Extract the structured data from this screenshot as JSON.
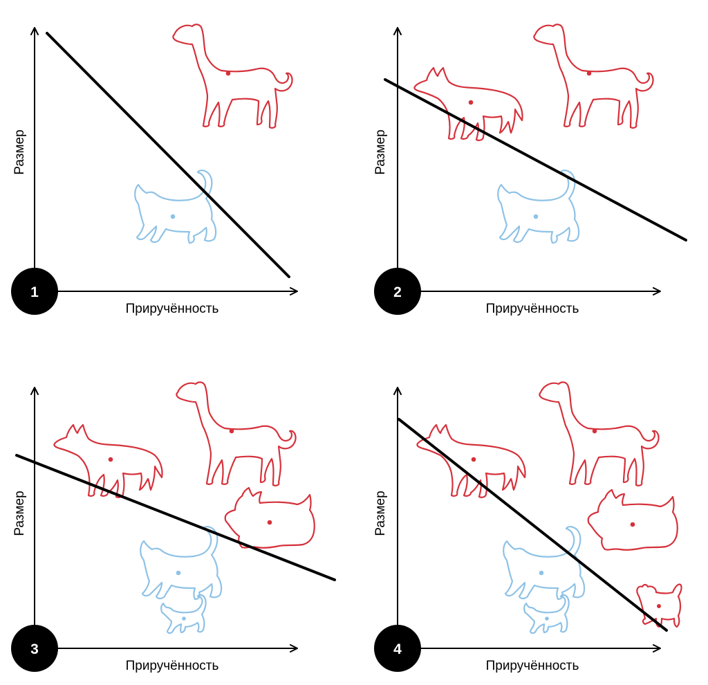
{
  "colors": {
    "dog": "#d5313b",
    "cat": "#8ec2e6",
    "axis": "#000000",
    "boundary": "#000000",
    "badge": "#000000",
    "badge_text": "#ffffff"
  },
  "panels": [
    {
      "number": "1",
      "x_axis_label": "Приручённость",
      "y_axis_label": "Размер",
      "animals": [
        {
          "kind": "dog",
          "icon": "greyhound-icon"
        },
        {
          "kind": "cat",
          "icon": "cat-icon"
        }
      ]
    },
    {
      "number": "2",
      "x_axis_label": "Приручённость",
      "y_axis_label": "Размер",
      "animals": [
        {
          "kind": "dog",
          "icon": "wolf-icon"
        },
        {
          "kind": "dog",
          "icon": "greyhound-icon"
        },
        {
          "kind": "cat",
          "icon": "cat-icon"
        }
      ]
    },
    {
      "number": "3",
      "x_axis_label": "Приручённость",
      "y_axis_label": "Размер",
      "animals": [
        {
          "kind": "dog",
          "icon": "wolf-icon"
        },
        {
          "kind": "dog",
          "icon": "greyhound-icon"
        },
        {
          "kind": "dog",
          "icon": "scottish-terrier-icon"
        },
        {
          "kind": "cat",
          "icon": "cat-icon"
        },
        {
          "kind": "cat",
          "icon": "kitten-icon"
        }
      ]
    },
    {
      "number": "4",
      "x_axis_label": "Приручённость",
      "y_axis_label": "Размер",
      "animals": [
        {
          "kind": "dog",
          "icon": "wolf-icon"
        },
        {
          "kind": "dog",
          "icon": "greyhound-icon"
        },
        {
          "kind": "dog",
          "icon": "scottish-terrier-icon"
        },
        {
          "kind": "dog",
          "icon": "chihuahua-icon"
        },
        {
          "kind": "cat",
          "icon": "cat-icon"
        },
        {
          "kind": "cat",
          "icon": "kitten-icon"
        }
      ]
    }
  ]
}
